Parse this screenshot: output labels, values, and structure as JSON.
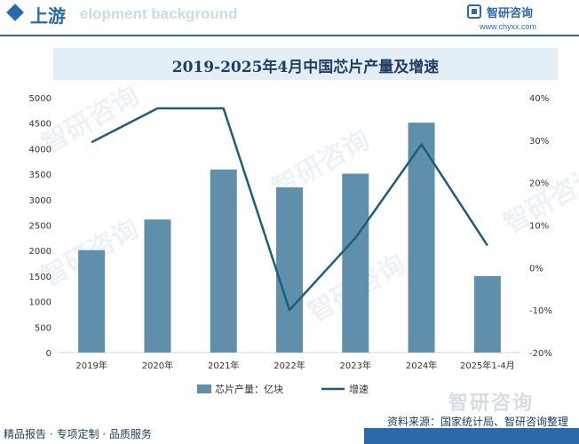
{
  "header": {
    "title": "上游",
    "watermark_text": "elopment background",
    "brand_name": "智研咨询",
    "brand_url": "www.chyxx.com"
  },
  "watermark": "智研咨询",
  "chart_data": {
    "type": "bar+line",
    "title": "2019-2025年4月中国芯片产量及增速",
    "categories": [
      "2019年",
      "2020年",
      "2021年",
      "2022年",
      "2023年",
      "2024年",
      "2025年1-4月"
    ],
    "series": [
      {
        "name": "芯片产量：亿块",
        "type": "bar",
        "axis": "left",
        "values": [
          2010,
          2610,
          3590,
          3240,
          3510,
          4510,
          1500
        ],
        "color": "#5f8faa"
      },
      {
        "name": "增速",
        "type": "line",
        "axis": "right",
        "values": [
          29.5,
          37.5,
          null,
          -10,
          7,
          29,
          5.2
        ],
        "color": "#1d5d80"
      }
    ],
    "left_axis": {
      "ylim": [
        0,
        5000
      ],
      "ticks": [
        0,
        500,
        1000,
        1500,
        2000,
        2500,
        3000,
        3500,
        4000,
        4500,
        5000
      ]
    },
    "right_axis": {
      "ylim": [
        -20,
        40
      ],
      "ticks": [
        "-20%",
        "-10%",
        "0%",
        "10%",
        "20%",
        "30%",
        "40%"
      ]
    },
    "legend_position": "bottom-center",
    "grid": false
  },
  "footer": {
    "left": "精品报告 · 专项定制 · 品质服务",
    "source": "资料来源：国家统计局、智研咨询整理",
    "brand": "智研咨询"
  }
}
